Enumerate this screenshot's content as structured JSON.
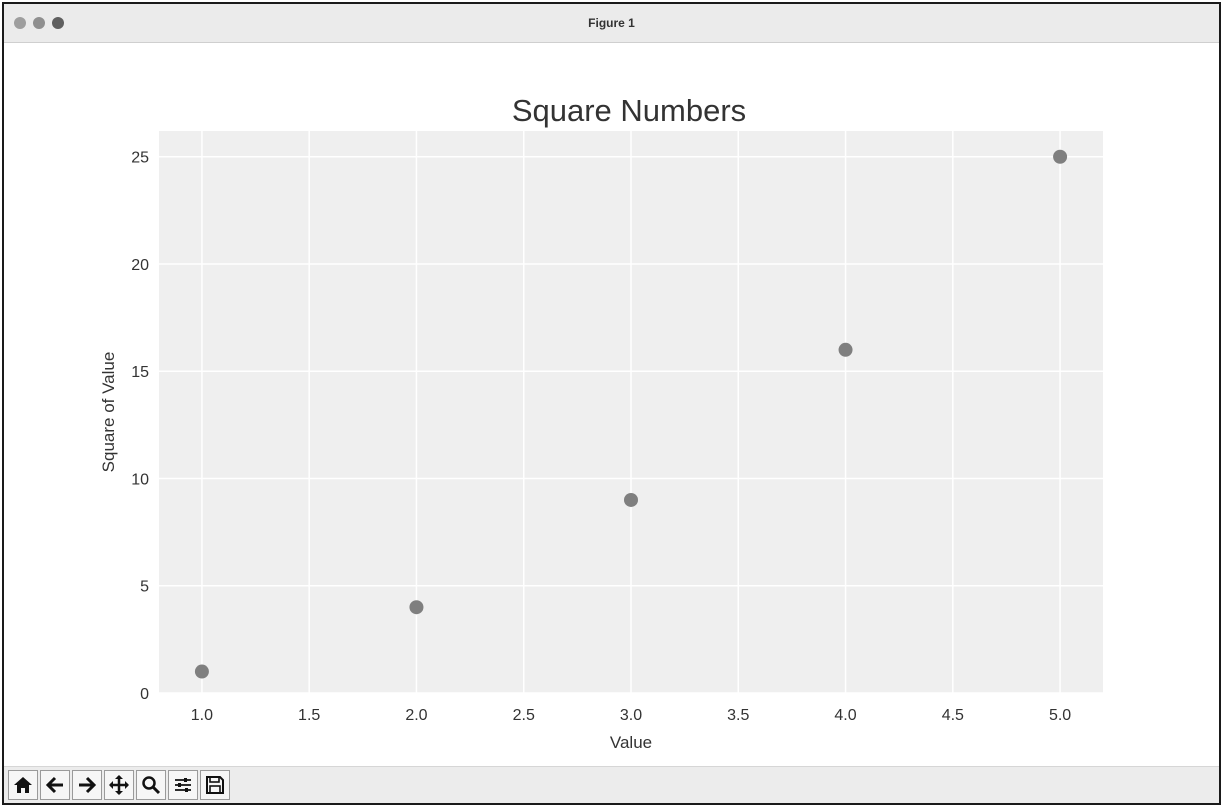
{
  "window": {
    "title": "Figure 1"
  },
  "toolbar": {
    "icons": [
      "home-icon",
      "back-arrow-icon",
      "forward-arrow-icon",
      "pan-icon",
      "zoom-icon",
      "configure-subplots-icon",
      "save-icon"
    ]
  },
  "colors": {
    "marker": "#7f7f7f",
    "plot_background": "#efefef",
    "grid": "#ffffff",
    "text": "#333333"
  },
  "chart_data": {
    "type": "scatter",
    "title": "Square Numbers",
    "xlabel": "Value",
    "ylabel": "Square of Value",
    "x": [
      1,
      2,
      3,
      4,
      5
    ],
    "y": [
      1,
      4,
      9,
      16,
      25
    ],
    "xlim": [
      0.8,
      5.2
    ],
    "ylim": [
      0,
      26.2
    ],
    "xticks": [
      "1.0",
      "1.5",
      "2.0",
      "2.5",
      "3.0",
      "3.5",
      "4.0",
      "4.5",
      "5.0"
    ],
    "yticks": [
      "0",
      "5",
      "10",
      "15",
      "20",
      "25"
    ],
    "grid": true
  }
}
